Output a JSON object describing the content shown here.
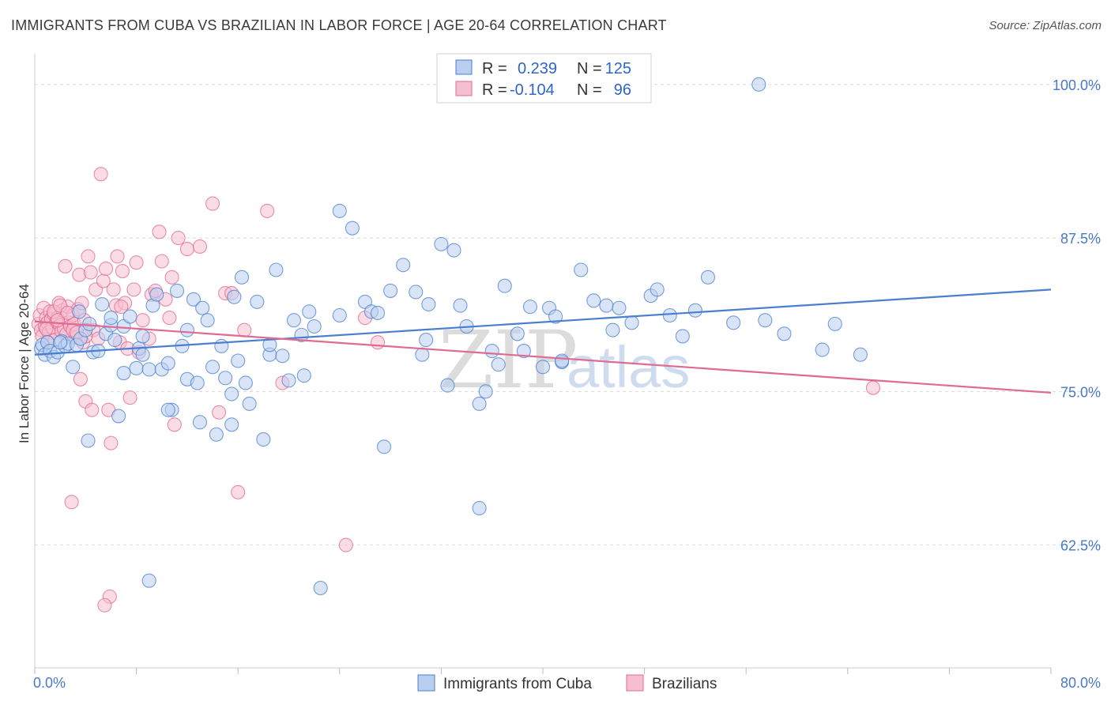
{
  "header": {
    "title": "IMMIGRANTS FROM CUBA VS BRAZILIAN IN LABOR FORCE | AGE 20-64 CORRELATION CHART",
    "source": "Source: ZipAtlas.com"
  },
  "watermark": {
    "zip": "ZIP",
    "atlas": "atlas"
  },
  "colors": {
    "cuba": "#4a7fd0",
    "cuba_fill": "#b9cff0",
    "brazil": "#e06a92",
    "brazil_fill": "#f5bfd0",
    "tick": "#4a78c8",
    "grid": "#d9d9d9"
  },
  "legend": {
    "cuba": {
      "r_label": "R =",
      "r_value": "0.239",
      "n_label": "N =",
      "n_value": "125"
    },
    "brazil": {
      "r_label": "R =",
      "r_value": "-0.104",
      "n_label": "N =",
      "n_value": "96"
    }
  },
  "chart_data": {
    "type": "scatter",
    "xlabel": "",
    "ylabel": "In Labor Force | Age 20-64",
    "xlim": [
      0,
      80
    ],
    "ylim": [
      52.5,
      102.5
    ],
    "x_tick_labels": [
      {
        "value": 0,
        "label": "0.0%"
      },
      {
        "value": 80,
        "label": "80.0%"
      }
    ],
    "y_tick_labels": [
      {
        "value": 62.5,
        "label": "62.5%"
      },
      {
        "value": 75.0,
        "label": "75.0%"
      },
      {
        "value": 87.5,
        "label": "87.5%"
      },
      {
        "value": 100.0,
        "label": "100.0%"
      }
    ],
    "grid": true,
    "legend_position": "top-center",
    "series": [
      {
        "name": "Immigrants from Cuba",
        "color": "#4a7fd0",
        "trend": {
          "x": [
            0,
            80
          ],
          "y": [
            78.0,
            83.3
          ]
        },
        "points": [
          [
            0.5,
            78.5
          ],
          [
            0.6,
            78.8
          ],
          [
            0.8,
            78.0
          ],
          [
            1.0,
            79.0
          ],
          [
            1.2,
            78.3
          ],
          [
            1.5,
            77.8
          ],
          [
            1.8,
            78.2
          ],
          [
            2.1,
            79.1
          ],
          [
            2.4,
            78.7
          ],
          [
            2.6,
            78.9
          ],
          [
            3.0,
            77.0
          ],
          [
            3.3,
            78.8
          ],
          [
            3.6,
            79.3
          ],
          [
            4.0,
            80.0
          ],
          [
            4.3,
            80.5
          ],
          [
            4.6,
            78.2
          ],
          [
            5.0,
            78.3
          ],
          [
            5.3,
            82.1
          ],
          [
            5.6,
            79.7
          ],
          [
            6.0,
            80.4
          ],
          [
            6.3,
            79.2
          ],
          [
            6.6,
            73.0
          ],
          [
            7.0,
            80.3
          ],
          [
            7.5,
            81.1
          ],
          [
            8.0,
            76.9
          ],
          [
            8.2,
            78.5
          ],
          [
            8.5,
            79.5
          ],
          [
            9.0,
            76.8
          ],
          [
            9.3,
            82.0
          ],
          [
            9.6,
            82.9
          ],
          [
            10.0,
            76.8
          ],
          [
            10.5,
            77.3
          ],
          [
            10.8,
            73.5
          ],
          [
            11.2,
            83.2
          ],
          [
            11.6,
            78.7
          ],
          [
            12.0,
            76.0
          ],
          [
            12.5,
            82.5
          ],
          [
            12.8,
            75.7
          ],
          [
            13.2,
            81.8
          ],
          [
            13.6,
            80.8
          ],
          [
            14.0,
            77.0
          ],
          [
            14.3,
            71.5
          ],
          [
            14.7,
            78.7
          ],
          [
            15.0,
            76.1
          ],
          [
            15.5,
            72.3
          ],
          [
            15.7,
            82.7
          ],
          [
            16.0,
            77.5
          ],
          [
            16.3,
            84.3
          ],
          [
            16.6,
            75.7
          ],
          [
            16.9,
            74.0
          ],
          [
            17.5,
            82.3
          ],
          [
            18.0,
            71.1
          ],
          [
            18.5,
            78.0
          ],
          [
            19.0,
            84.9
          ],
          [
            19.5,
            77.9
          ],
          [
            20.0,
            75.9
          ],
          [
            20.4,
            80.8
          ],
          [
            21.0,
            79.6
          ],
          [
            21.2,
            76.3
          ],
          [
            21.6,
            81.5
          ],
          [
            22.0,
            80.3
          ],
          [
            24.0,
            89.7
          ],
          [
            25.0,
            88.3
          ],
          [
            26.0,
            82.3
          ],
          [
            26.5,
            81.5
          ],
          [
            27.0,
            81.4
          ],
          [
            28.0,
            83.2
          ],
          [
            29.0,
            85.3
          ],
          [
            30.0,
            83.1
          ],
          [
            30.5,
            78.0
          ],
          [
            30.8,
            79.2
          ],
          [
            31.0,
            82.1
          ],
          [
            32.0,
            87.0
          ],
          [
            32.5,
            75.5
          ],
          [
            33.0,
            86.5
          ],
          [
            33.5,
            82.0
          ],
          [
            34.0,
            80.3
          ],
          [
            35.0,
            65.5
          ],
          [
            35.5,
            75.0
          ],
          [
            36.0,
            78.3
          ],
          [
            36.5,
            77.2
          ],
          [
            37.0,
            83.6
          ],
          [
            38.0,
            79.7
          ],
          [
            38.5,
            78.3
          ],
          [
            39.0,
            81.9
          ],
          [
            40.0,
            77.0
          ],
          [
            40.5,
            81.8
          ],
          [
            41.0,
            81.1
          ],
          [
            41.5,
            77.4
          ],
          [
            43.0,
            84.9
          ],
          [
            44.0,
            82.4
          ],
          [
            45.0,
            82.0
          ],
          [
            45.5,
            80.0
          ],
          [
            46.0,
            81.8
          ],
          [
            47.0,
            80.6
          ],
          [
            48.5,
            82.8
          ],
          [
            49.0,
            83.3
          ],
          [
            50.0,
            81.2
          ],
          [
            51.0,
            79.5
          ],
          [
            52.0,
            81.6
          ],
          [
            53.0,
            84.3
          ],
          [
            55.0,
            80.6
          ],
          [
            57.0,
            100.0
          ],
          [
            57.5,
            80.8
          ],
          [
            59.0,
            79.7
          ],
          [
            62.0,
            78.4
          ],
          [
            63.0,
            80.5
          ],
          [
            65.0,
            78.0
          ],
          [
            4.2,
            71.0
          ],
          [
            9.0,
            59.6
          ],
          [
            22.5,
            59.0
          ],
          [
            10.5,
            73.5
          ],
          [
            7.0,
            76.5
          ],
          [
            13.0,
            72.5
          ],
          [
            27.5,
            70.5
          ],
          [
            15.5,
            74.8
          ],
          [
            3.5,
            81.5
          ],
          [
            6.0,
            81.0
          ],
          [
            12.0,
            80.0
          ],
          [
            18.5,
            78.8
          ],
          [
            24.0,
            81.2
          ],
          [
            35.0,
            74.0
          ],
          [
            41.5,
            77.5
          ],
          [
            2.0,
            79.0
          ],
          [
            8.5,
            78.0
          ]
        ]
      },
      {
        "name": "Brazilians",
        "color": "#e06a92",
        "trend": {
          "x": [
            0,
            80
          ],
          "y": [
            80.7,
            74.9
          ]
        },
        "points": [
          [
            0.3,
            80.5
          ],
          [
            0.4,
            81.2
          ],
          [
            0.5,
            80.0
          ],
          [
            0.6,
            79.5
          ],
          [
            0.7,
            81.8
          ],
          [
            0.8,
            80.3
          ],
          [
            0.9,
            81.0
          ],
          [
            1.0,
            80.6
          ],
          [
            1.1,
            79.8
          ],
          [
            1.2,
            81.5
          ],
          [
            1.3,
            80.9
          ],
          [
            1.4,
            80.2
          ],
          [
            1.5,
            81.3
          ],
          [
            1.6,
            79.2
          ],
          [
            1.7,
            80.7
          ],
          [
            1.8,
            81.0
          ],
          [
            1.9,
            82.2
          ],
          [
            2.0,
            80.4
          ],
          [
            2.1,
            79.9
          ],
          [
            2.2,
            81.6
          ],
          [
            2.3,
            80.1
          ],
          [
            2.4,
            85.2
          ],
          [
            2.5,
            79.7
          ],
          [
            2.6,
            81.9
          ],
          [
            2.7,
            80.6
          ],
          [
            2.8,
            80.3
          ],
          [
            2.9,
            66.0
          ],
          [
            3.0,
            81.2
          ],
          [
            3.1,
            80.5
          ],
          [
            3.2,
            79.4
          ],
          [
            3.4,
            81.7
          ],
          [
            3.5,
            84.5
          ],
          [
            3.6,
            76.0
          ],
          [
            3.7,
            82.2
          ],
          [
            3.8,
            79.0
          ],
          [
            3.9,
            80.8
          ],
          [
            4.0,
            74.2
          ],
          [
            4.2,
            86.0
          ],
          [
            4.4,
            84.7
          ],
          [
            4.5,
            73.5
          ],
          [
            4.6,
            80.0
          ],
          [
            4.8,
            83.3
          ],
          [
            5.0,
            79.3
          ],
          [
            5.2,
            92.7
          ],
          [
            5.4,
            84.0
          ],
          [
            5.6,
            85.0
          ],
          [
            5.8,
            73.5
          ],
          [
            6.0,
            70.8
          ],
          [
            6.2,
            83.3
          ],
          [
            6.4,
            82.0
          ],
          [
            6.5,
            86.0
          ],
          [
            6.7,
            79.0
          ],
          [
            6.9,
            84.8
          ],
          [
            7.1,
            82.2
          ],
          [
            7.3,
            78.5
          ],
          [
            7.5,
            74.5
          ],
          [
            7.8,
            83.3
          ],
          [
            8.0,
            85.5
          ],
          [
            8.2,
            78.2
          ],
          [
            8.5,
            80.8
          ],
          [
            9.0,
            79.3
          ],
          [
            9.2,
            82.9
          ],
          [
            9.5,
            83.2
          ],
          [
            9.8,
            88.0
          ],
          [
            10.0,
            85.6
          ],
          [
            10.3,
            82.5
          ],
          [
            10.6,
            81.0
          ],
          [
            10.8,
            84.3
          ],
          [
            11.0,
            72.3
          ],
          [
            11.3,
            87.5
          ],
          [
            12.0,
            86.6
          ],
          [
            13.0,
            86.8
          ],
          [
            14.0,
            90.3
          ],
          [
            14.5,
            73.3
          ],
          [
            15.0,
            83.0
          ],
          [
            16.0,
            66.8
          ],
          [
            16.5,
            80.0
          ],
          [
            18.3,
            89.7
          ],
          [
            19.5,
            75.7
          ],
          [
            24.5,
            62.5
          ],
          [
            26.0,
            81.0
          ],
          [
            27.0,
            79.0
          ],
          [
            66.0,
            75.3
          ],
          [
            5.9,
            58.3
          ],
          [
            5.5,
            57.6
          ],
          [
            1.5,
            81.5
          ],
          [
            2.0,
            82.0
          ],
          [
            3.0,
            80.0
          ],
          [
            4.0,
            79.5
          ],
          [
            1.0,
            79.0
          ],
          [
            1.8,
            80.8
          ],
          [
            2.6,
            81.4
          ],
          [
            3.3,
            79.8
          ],
          [
            0.9,
            80.1
          ],
          [
            6.8,
            81.9
          ],
          [
            15.5,
            83.0
          ]
        ]
      }
    ]
  },
  "bottom_legend": {
    "cuba_label": "Immigrants from Cuba",
    "brazil_label": "Brazilians"
  }
}
